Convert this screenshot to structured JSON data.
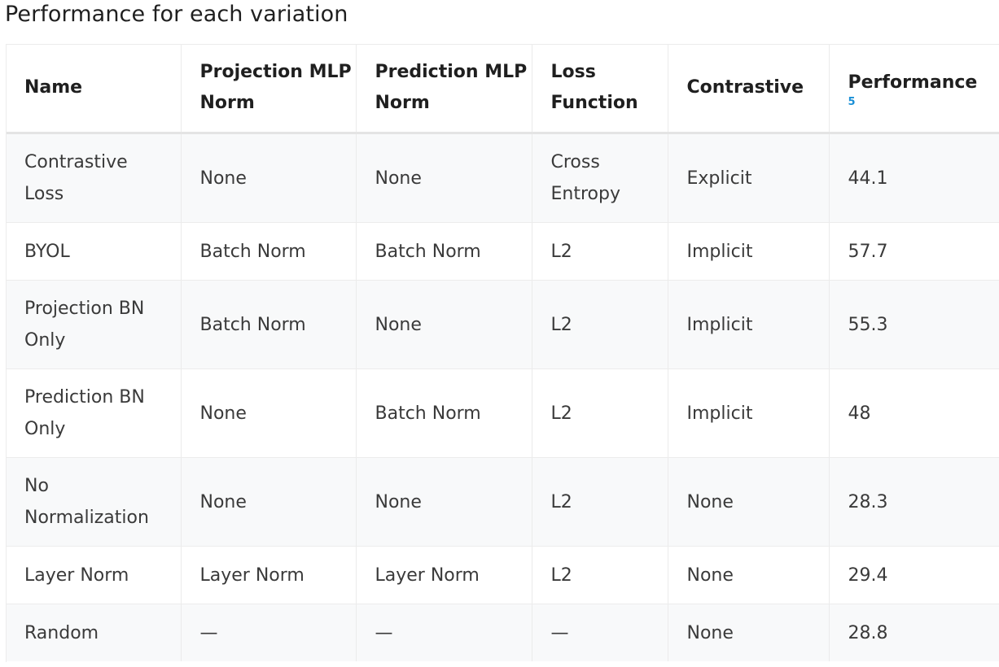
{
  "title": "Performance for each variation",
  "table": {
    "headers": {
      "name": "Name",
      "projection": "Projection MLP Norm",
      "prediction": "Prediction MLP Norm",
      "loss": "Loss Function",
      "contrastive": "Contrastive",
      "performance": "Performance",
      "performance_ref": "5"
    },
    "rows": [
      {
        "name": "Contrastive Loss",
        "projection": "None",
        "prediction": "None",
        "loss": "Cross Entropy",
        "contrastive": "Explicit",
        "performance": "44.1"
      },
      {
        "name": "BYOL",
        "projection": "Batch Norm",
        "prediction": "Batch Norm",
        "loss": "L2",
        "contrastive": "Implicit",
        "performance": "57.7"
      },
      {
        "name": "Projection BN Only",
        "projection": "Batch Norm",
        "prediction": "None",
        "loss": "L2",
        "contrastive": "Implicit",
        "performance": "55.3"
      },
      {
        "name": "Prediction BN Only",
        "projection": "None",
        "prediction": "Batch Norm",
        "loss": "L2",
        "contrastive": "Implicit",
        "performance": "48"
      },
      {
        "name": "No Normalization",
        "projection": "None",
        "prediction": "None",
        "loss": "L2",
        "contrastive": "None",
        "performance": "28.3"
      },
      {
        "name": "Layer Norm",
        "projection": "Layer Norm",
        "prediction": "Layer Norm",
        "loss": "L2",
        "contrastive": "None",
        "performance": "29.4"
      },
      {
        "name": "Random",
        "projection": "—",
        "prediction": "—",
        "loss": "—",
        "contrastive": "None",
        "performance": "28.8"
      }
    ]
  },
  "colors": {
    "text": "#1f1f1f",
    "cell_text": "#3a3a3a",
    "reference_link": "#1a8fd6",
    "stripe": "#f8f9fa",
    "border": "#ebebeb"
  }
}
